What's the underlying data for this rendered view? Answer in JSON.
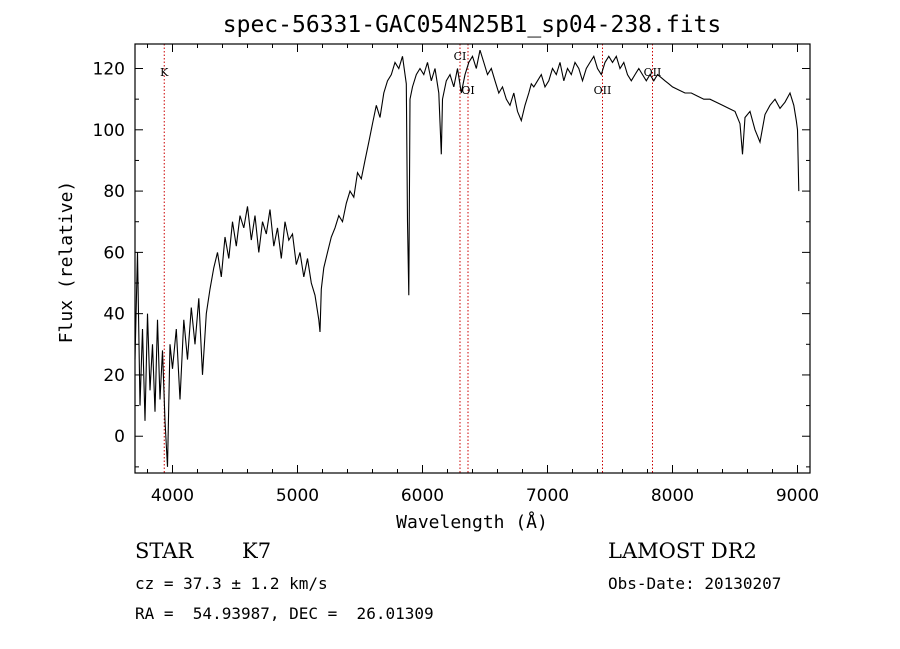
{
  "chart_data": {
    "type": "line",
    "title": "spec-56331-GAC054N25B1_sp04-238.fits",
    "xlabel": "Wavelength (Å)",
    "ylabel": "Flux (relative)",
    "xlim": [
      3700,
      9100
    ],
    "ylim": [
      -12,
      128
    ],
    "xticks": [
      4000,
      5000,
      6000,
      7000,
      8000,
      9000
    ],
    "yticks": [
      0,
      20,
      40,
      60,
      80,
      100,
      120
    ],
    "grid": false,
    "line_color": "#000000",
    "marker_color": "#cc0000",
    "series": [
      {
        "x": [
          3700,
          3720,
          3740,
          3760,
          3780,
          3800,
          3820,
          3840,
          3860,
          3880,
          3900,
          3920,
          3940,
          3960,
          3980,
          4000,
          4030,
          4060,
          4090,
          4120,
          4150,
          4180,
          4210,
          4240,
          4270,
          4300,
          4330,
          4360,
          4390,
          4420,
          4450,
          4480,
          4510,
          4540,
          4570,
          4600,
          4630,
          4660,
          4690,
          4720,
          4750,
          4780,
          4810,
          4840,
          4870,
          4900,
          4930,
          4960,
          4990,
          5020,
          5050,
          5080,
          5110,
          5140,
          5170,
          5180,
          5190,
          5210,
          5240,
          5270,
          5300,
          5330,
          5360,
          5390,
          5420,
          5450,
          5480,
          5510,
          5540,
          5570,
          5600,
          5630,
          5660,
          5690,
          5720,
          5750,
          5780,
          5810,
          5840,
          5870,
          5880,
          5890,
          5900,
          5920,
          5950,
          5980,
          6010,
          6040,
          6070,
          6100,
          6130,
          6150,
          6160,
          6190,
          6220,
          6250,
          6280,
          6310,
          6340,
          6370,
          6400,
          6430,
          6460,
          6490,
          6520,
          6550,
          6580,
          6610,
          6640,
          6670,
          6700,
          6730,
          6760,
          6790,
          6820,
          6850,
          6870,
          6890,
          6920,
          6950,
          6980,
          7010,
          7040,
          7070,
          7100,
          7130,
          7160,
          7190,
          7220,
          7250,
          7280,
          7310,
          7340,
          7370,
          7400,
          7430,
          7460,
          7490,
          7520,
          7550,
          7580,
          7610,
          7640,
          7670,
          7700,
          7730,
          7760,
          7790,
          7820,
          7850,
          7880,
          7910,
          7940,
          7970,
          8000,
          8050,
          8100,
          8150,
          8200,
          8250,
          8300,
          8350,
          8400,
          8450,
          8500,
          8540,
          8560,
          8580,
          8620,
          8660,
          8680,
          8700,
          8740,
          8780,
          8820,
          8860,
          8900,
          8940,
          8970,
          8990,
          9000,
          9010
        ],
        "y": [
          25,
          60,
          10,
          35,
          5,
          40,
          15,
          30,
          8,
          38,
          12,
          28,
          5,
          -10,
          30,
          22,
          35,
          12,
          38,
          25,
          42,
          30,
          45,
          20,
          40,
          48,
          55,
          60,
          52,
          65,
          58,
          70,
          62,
          72,
          68,
          75,
          64,
          72,
          60,
          70,
          66,
          74,
          62,
          68,
          58,
          70,
          64,
          66,
          56,
          60,
          52,
          58,
          50,
          46,
          38,
          34,
          48,
          55,
          60,
          65,
          68,
          72,
          70,
          76,
          80,
          78,
          86,
          84,
          90,
          96,
          102,
          108,
          104,
          112,
          116,
          118,
          122,
          120,
          124,
          115,
          70,
          46,
          110,
          114,
          118,
          120,
          118,
          122,
          116,
          120,
          112,
          92,
          110,
          116,
          118,
          114,
          120,
          112,
          118,
          122,
          124,
          120,
          126,
          122,
          118,
          120,
          116,
          112,
          114,
          110,
          108,
          112,
          106,
          103,
          108,
          112,
          115,
          114,
          116,
          118,
          114,
          116,
          120,
          118,
          122,
          116,
          120,
          118,
          122,
          120,
          116,
          120,
          122,
          124,
          120,
          118,
          122,
          124,
          122,
          124,
          120,
          122,
          118,
          116,
          118,
          120,
          118,
          116,
          118,
          116,
          118,
          117,
          116,
          115,
          114,
          113,
          112,
          112,
          111,
          110,
          110,
          109,
          108,
          107,
          106,
          102,
          92,
          104,
          106,
          100,
          98,
          96,
          105,
          108,
          110,
          107,
          109,
          112,
          108,
          103,
          100,
          80
        ]
      }
    ],
    "line_markers": [
      {
        "label": "K",
        "x": 3934
      },
      {
        "label": "CI",
        "x": 6300
      },
      {
        "label": "OI",
        "x": 6364
      },
      {
        "label": "OII",
        "x": 7440
      },
      {
        "label": "OII",
        "x": 7840
      }
    ]
  },
  "info": {
    "object_type": "STAR",
    "subclass": "K7",
    "survey": "LAMOST DR2",
    "redshift_line": "cz = 37.3 ± 1.2 km/s",
    "obs_date_line": "Obs-Date: 20130207",
    "coord_line": "RA =  54.93987, DEC =  26.01309"
  }
}
